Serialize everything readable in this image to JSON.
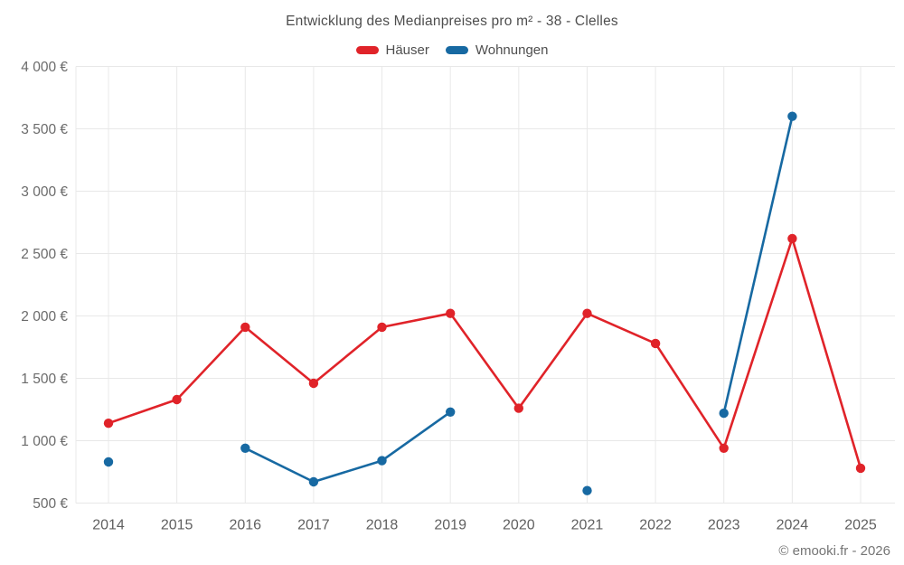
{
  "title": "Entwicklung des Medianpreises pro m² - 38 - Clelles",
  "footer": "© emooki.fr - 2026",
  "legend": {
    "items": [
      {
        "label": "Häuser",
        "color": "#e02329"
      },
      {
        "label": "Wohnungen",
        "color": "#1769a2"
      }
    ]
  },
  "colors": {
    "haeuser": "#e02329",
    "wohnungen": "#1769a2",
    "gridline": "#e8e8e8",
    "axis_text": "#666666"
  },
  "chart_data": {
    "type": "line",
    "title": "Entwicklung des Medianpreises pro m² - 38 - Clelles",
    "xlabel": "",
    "ylabel": "",
    "x": [
      "2014",
      "2015",
      "2016",
      "2017",
      "2018",
      "2019",
      "2020",
      "2021",
      "2022",
      "2023",
      "2024",
      "2025"
    ],
    "series": [
      {
        "name": "Häuser",
        "color": "#e02329",
        "values": [
          1140,
          1330,
          1910,
          1460,
          1910,
          2020,
          1260,
          2020,
          1780,
          940,
          2620,
          780
        ]
      },
      {
        "name": "Wohnungen",
        "color": "#1769a2",
        "values": [
          830,
          null,
          940,
          670,
          840,
          1230,
          null,
          600,
          null,
          1220,
          3600,
          null
        ]
      }
    ],
    "ylim": [
      500,
      4000
    ],
    "y_ticks": [
      {
        "value": 500,
        "label": "500 €"
      },
      {
        "value": 1000,
        "label": "1 000 €"
      },
      {
        "value": 1500,
        "label": "1 500 €"
      },
      {
        "value": 2000,
        "label": "2 000 €"
      },
      {
        "value": 2500,
        "label": "2 500 €"
      },
      {
        "value": 3000,
        "label": "3 000 €"
      },
      {
        "value": 3500,
        "label": "3 500 €"
      },
      {
        "value": 4000,
        "label": "4 000 €"
      }
    ],
    "grid": true,
    "legend_position": "top"
  }
}
